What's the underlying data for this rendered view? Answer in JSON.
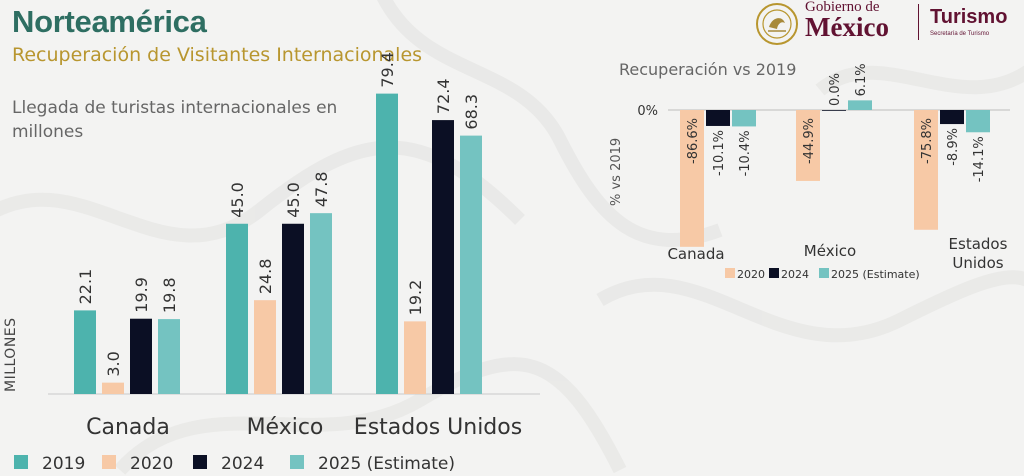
{
  "header": {
    "title": "Norteamérica",
    "subtitle": "Recuperación de Visitantes Internacionales"
  },
  "logo": {
    "gobierno": "Gobierno de",
    "mexico": "México",
    "turismo": "Turismo",
    "secretaria": "Secretaría de Turismo",
    "color": "#611232"
  },
  "colors": {
    "2019": "#4db3ad",
    "2020": "#f7c9a6",
    "2024": "#0b0f24",
    "2025": "#74c3c1"
  },
  "chart_data": [
    {
      "type": "bar",
      "title": "Llegada de turistas  internacionales en millones",
      "ylabel": "MILLONES",
      "categories": [
        "Canada",
        "México",
        "Estados Unidos"
      ],
      "series": [
        {
          "name": "2019",
          "values": [
            22.1,
            45.0,
            79.4
          ],
          "labels": [
            "22.1",
            "45.0",
            "79.4"
          ]
        },
        {
          "name": "2020",
          "values": [
            3.0,
            24.8,
            19.2
          ],
          "labels": [
            "3.0",
            "24.8",
            "19.2"
          ]
        },
        {
          "name": "2024",
          "values": [
            19.9,
            45.0,
            72.4
          ],
          "labels": [
            "19.9",
            "45.0",
            "72.4"
          ]
        },
        {
          "name": "2025 (Estimate)",
          "values": [
            19.8,
            47.8,
            68.3
          ],
          "labels": [
            "19.8",
            "47.8",
            "68.3"
          ]
        }
      ],
      "ylim": [
        0,
        83
      ],
      "legend": "bottom",
      "grid": false
    },
    {
      "type": "bar",
      "title": "Recuperación vs 2019",
      "ylabel": "% vs 2019",
      "zero_label": "0%",
      "categories": [
        "Canada",
        "México",
        "Estados Unidos"
      ],
      "series": [
        {
          "name": "2020",
          "values": [
            -86.6,
            -44.9,
            -75.8
          ],
          "labels": [
            "-86.6%",
            "-44.9%",
            "-75.8%"
          ]
        },
        {
          "name": "2024",
          "values": [
            -10.1,
            0.0,
            -8.9
          ],
          "labels": [
            "-10.1%",
            "0.0%",
            "-8.9%"
          ]
        },
        {
          "name": "2025 (Estimate)",
          "values": [
            -10.4,
            6.1,
            -14.1
          ],
          "labels": [
            "-10.4%",
            "6.1%",
            "-14.1%"
          ]
        }
      ],
      "ylim": [
        -90,
        10
      ],
      "legend": "bottom",
      "grid": false
    }
  ]
}
